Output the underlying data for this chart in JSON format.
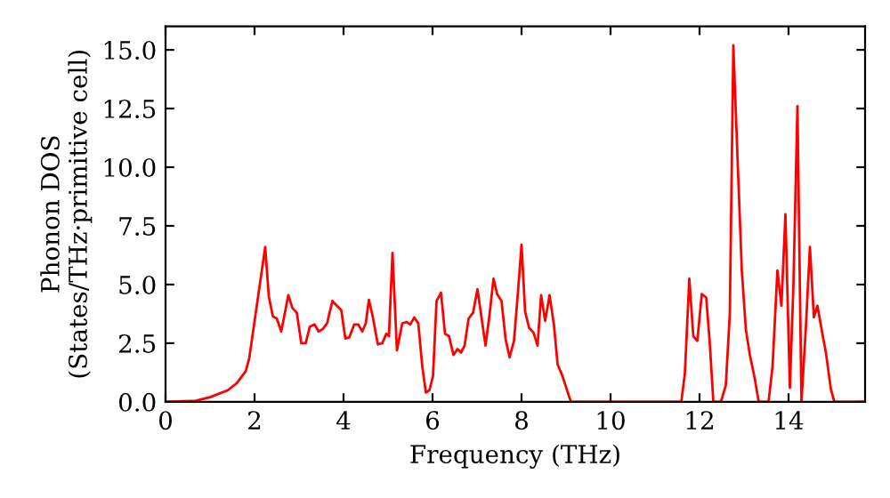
{
  "chart_data": {
    "type": "line",
    "xlabel": "Frequency (THz)",
    "ylabel": "Phonon DOS\n(States/THz·primitive cell)",
    "xlim": [
      0,
      15.72
    ],
    "xticks": [
      0,
      2,
      4,
      6,
      8,
      10,
      12,
      14
    ],
    "ylim": [
      0,
      16
    ],
    "yticks": [
      {
        "value": 0,
        "label": "0.0"
      },
      {
        "value": 2.5,
        "label": "2.5"
      },
      {
        "value": 5,
        "label": "5.0"
      },
      {
        "value": 7.5,
        "label": "7.5"
      },
      {
        "value": 10,
        "label": "10.0"
      },
      {
        "value": 12.5,
        "label": "12.5"
      },
      {
        "value": 15,
        "label": "15.0"
      }
    ],
    "grid": false,
    "marker": "none",
    "line_style": "solid",
    "series": [
      {
        "color": "#ff0000",
        "x": [
          0,
          0.68,
          1.0,
          1.4,
          1.6,
          1.8,
          1.88,
          2.24,
          2.32,
          2.41,
          2.5,
          2.6,
          2.76,
          2.85,
          2.95,
          3.05,
          3.15,
          3.24,
          3.35,
          3.44,
          3.53,
          3.63,
          3.75,
          3.85,
          3.95,
          4.04,
          4.13,
          4.24,
          4.33,
          4.42,
          4.5,
          4.57,
          4.66,
          4.77,
          4.87,
          4.96,
          5.02,
          5.1,
          5.2,
          5.32,
          5.42,
          5.5,
          5.59,
          5.68,
          5.77,
          5.85,
          5.93,
          6.01,
          6.09,
          6.19,
          6.28,
          6.37,
          6.47,
          6.56,
          6.64,
          6.72,
          6.81,
          6.91,
          7.01,
          7.1,
          7.19,
          7.28,
          7.37,
          7.45,
          7.55,
          7.64,
          7.73,
          7.83,
          7.92,
          8.0,
          8.08,
          8.17,
          8.27,
          8.36,
          8.44,
          8.53,
          8.63,
          8.73,
          8.81,
          8.92,
          9.03,
          9.11,
          11.59,
          11.67,
          11.77,
          11.86,
          11.95,
          12.05,
          12.15,
          12.23,
          12.31,
          12.48,
          12.59,
          12.68,
          12.76,
          12.85,
          12.95,
          13.04,
          13.13,
          13.24,
          13.33,
          13.55,
          13.64,
          13.75,
          13.84,
          13.93,
          14.03,
          14.11,
          14.2,
          14.29,
          14.39,
          14.48,
          14.57,
          14.65,
          14.75,
          14.84,
          14.95,
          15.03,
          15.72
        ],
        "values": [
          0,
          0.05,
          0.2,
          0.5,
          0.8,
          1.3,
          1.85,
          6.6,
          4.5,
          3.65,
          3.55,
          3.0,
          4.55,
          4.0,
          3.8,
          2.5,
          2.5,
          3.2,
          3.3,
          3.0,
          3.1,
          3.35,
          4.3,
          4.1,
          3.9,
          2.7,
          2.75,
          3.3,
          3.3,
          3.0,
          3.35,
          4.35,
          3.6,
          2.45,
          2.5,
          2.9,
          2.8,
          6.35,
          2.2,
          3.35,
          3.4,
          3.3,
          3.6,
          3.35,
          1.5,
          0.4,
          0.5,
          1.1,
          4.3,
          4.65,
          2.9,
          2.8,
          2.0,
          2.25,
          2.1,
          2.4,
          3.55,
          3.8,
          4.8,
          3.6,
          2.4,
          3.7,
          5.25,
          4.6,
          4.3,
          2.7,
          1.9,
          2.6,
          4.7,
          6.7,
          3.85,
          3.15,
          2.95,
          2.4,
          4.55,
          3.45,
          4.55,
          3.25,
          1.6,
          1.1,
          0.45,
          0,
          0,
          1.2,
          5.25,
          2.8,
          2.6,
          4.6,
          4.45,
          2.5,
          0,
          0,
          0.7,
          3.75,
          15.2,
          10.55,
          5.6,
          3.1,
          2.0,
          1.0,
          0,
          0,
          1.5,
          5.6,
          4.1,
          8.0,
          0.6,
          5.0,
          12.6,
          0,
          3.2,
          6.6,
          3.6,
          4.1,
          3.0,
          2.1,
          0.55,
          0,
          0
        ]
      }
    ]
  }
}
